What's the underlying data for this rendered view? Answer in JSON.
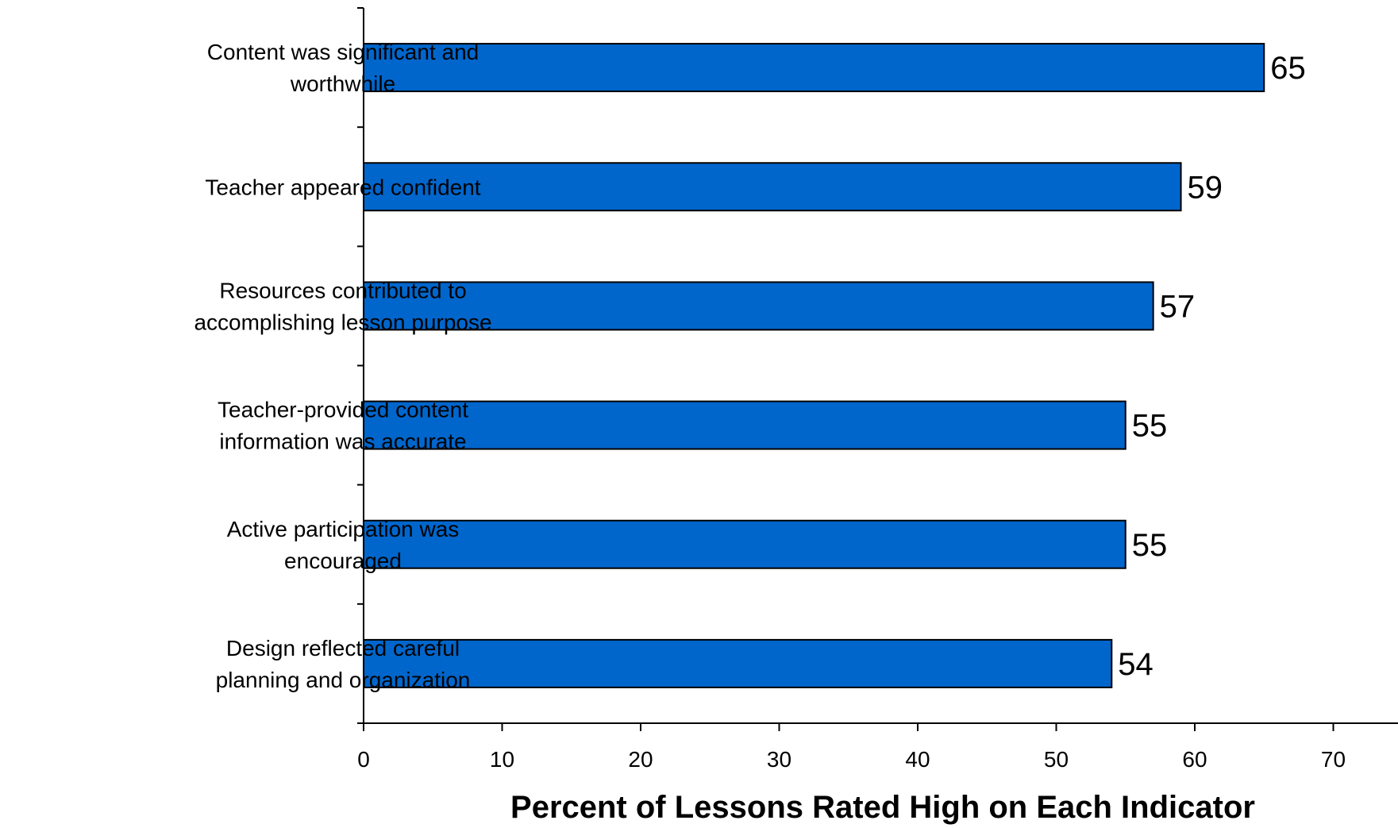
{
  "chart_data": {
    "type": "bar",
    "orientation": "horizontal",
    "categories": [
      [
        "Content was significant and",
        "worthwhile"
      ],
      [
        "Teacher appeared confident"
      ],
      [
        "Resources contributed to",
        "accomplishing lesson purpose"
      ],
      [
        "Teacher-provided content",
        "information was accurate"
      ],
      [
        "Active participation was",
        "encouraged"
      ],
      [
        "Design reflected careful",
        "planning and organization"
      ]
    ],
    "values": [
      65,
      59,
      57,
      55,
      55,
      54
    ],
    "data_labels": [
      "65",
      "59",
      "57",
      "55",
      "55",
      "54"
    ],
    "xlabel": "Percent of Lessons Rated High on Each Indicator",
    "ylabel": "",
    "xlim": [
      0,
      70
    ],
    "xticks": [
      "0",
      "10",
      "20",
      "30",
      "40",
      "50",
      "60",
      "70"
    ],
    "bar_color": "#0066CC",
    "grid": false,
    "legend": "none"
  }
}
